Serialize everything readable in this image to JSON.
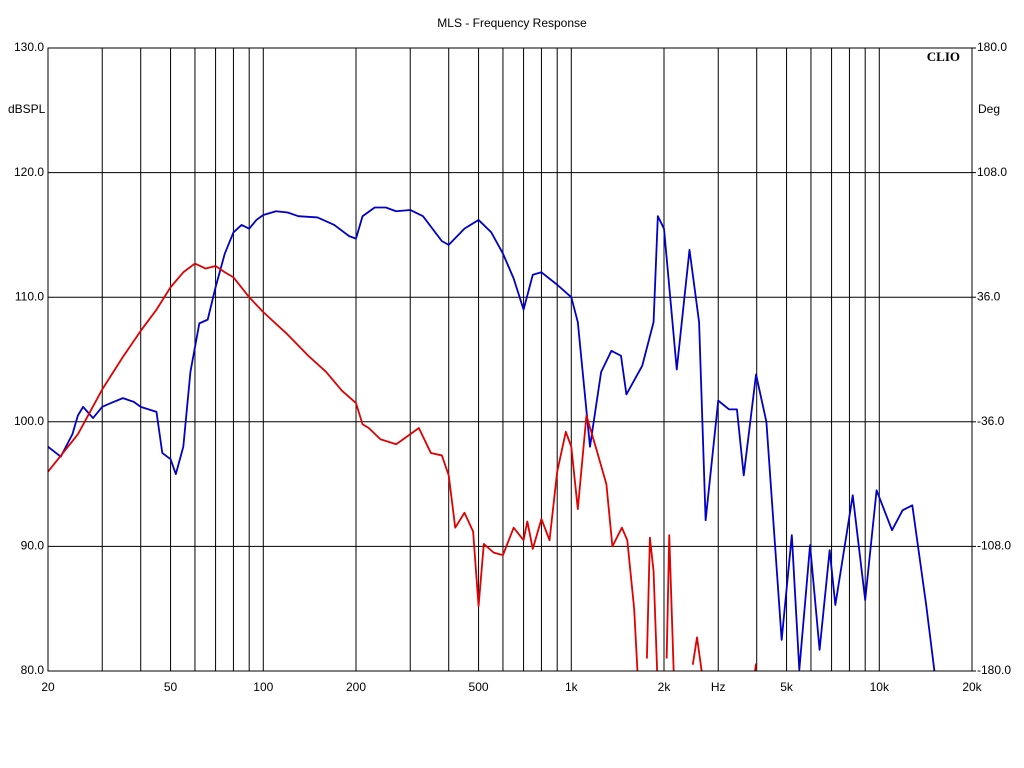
{
  "chart_data": {
    "type": "line",
    "title": "MLS - Frequency Response",
    "ylabel": "dBSPL",
    "y2label": "Deg",
    "brand": "CLIO",
    "xscale": "log",
    "xlim": [
      20,
      20000
    ],
    "ylim": [
      80,
      130
    ],
    "y2lim": [
      -180,
      180
    ],
    "grid": true,
    "xticks": [
      20,
      50,
      100,
      200,
      500,
      {
        "value": 1000,
        "label": "1k"
      },
      {
        "value": 2000,
        "label": "2k"
      },
      {
        "value": 3000,
        "label": "Hz"
      },
      {
        "value": 5000,
        "label": "5k"
      },
      {
        "value": 10000,
        "label": "10k"
      },
      {
        "value": 20000,
        "label": "20k"
      }
    ],
    "xgrid": [
      30,
      40,
      60,
      70,
      80,
      90,
      300,
      400,
      600,
      700,
      800,
      900,
      4000,
      6000,
      7000,
      8000,
      9000
    ],
    "yticks": [
      {
        "value": 80,
        "label": "80.0"
      },
      {
        "value": 90,
        "label": "90.0"
      },
      {
        "value": 100,
        "label": "100.0"
      },
      {
        "value": 110,
        "label": "110.0"
      },
      {
        "value": 120,
        "label": "120.0"
      },
      {
        "value": 130,
        "label": "130.0"
      }
    ],
    "y2ticks": [
      {
        "value": -180,
        "label": "-180.0"
      },
      {
        "value": -108,
        "label": "-108.0"
      },
      {
        "value": -36,
        "label": "-36.0"
      },
      {
        "value": 36,
        "label": "36.0"
      },
      {
        "value": 108,
        "label": "108.0"
      },
      {
        "value": 180,
        "label": "180.0"
      }
    ],
    "series": [
      {
        "color": "#0000c8",
        "x": [
          20,
          22,
          24,
          25,
          26,
          28,
          30,
          32,
          35,
          38,
          40,
          45,
          47,
          50,
          52,
          55,
          58,
          62,
          66,
          70,
          75,
          80,
          85,
          90,
          95,
          100,
          110,
          120,
          130,
          150,
          170,
          190,
          200,
          210,
          230,
          250,
          270,
          300,
          330,
          380,
          400,
          450,
          500,
          550,
          600,
          650,
          700,
          750,
          800,
          900,
          1000,
          1050,
          1150,
          1250,
          1350,
          1450,
          1510,
          1700,
          1850,
          1910,
          2000,
          2200,
          2420,
          2600,
          2730,
          3000,
          3250,
          3450,
          3630,
          3980,
          4300,
          4820,
          5200,
          5500,
          5960,
          6400,
          6900,
          7200,
          8200,
          9000,
          9800,
          11000,
          11900,
          12800,
          14200,
          15100
        ],
        "values": [
          98,
          97.2,
          99,
          100.5,
          101.2,
          100.3,
          101.2,
          101.5,
          101.9,
          101.6,
          101.2,
          100.8,
          97.5,
          97,
          95.8,
          98,
          104,
          107.9,
          108.2,
          110.8,
          113.5,
          115.2,
          115.8,
          115.5,
          116.2,
          116.6,
          116.9,
          116.8,
          116.5,
          116.4,
          115.8,
          114.9,
          114.7,
          116.5,
          117.2,
          117.2,
          116.9,
          117,
          116.5,
          114.5,
          114.2,
          115.5,
          116.2,
          115.2,
          113.5,
          111.5,
          109,
          111.8,
          112,
          111,
          110,
          108,
          98,
          104,
          105.7,
          105.3,
          102.2,
          104.5,
          108,
          116.5,
          115.5,
          104.2,
          113.8,
          108,
          92.1,
          101.7,
          101,
          101,
          95.7,
          103.8,
          100,
          82.5,
          90.9,
          80.1,
          90.1,
          81.7,
          89.7,
          85.3,
          94.1,
          85.7,
          94.5,
          91.3,
          92.9,
          93.3,
          85.3,
          80
        ]
      },
      {
        "color": "#e00000",
        "x": [
          20,
          25,
          30,
          35,
          40,
          45,
          50,
          55,
          60,
          65,
          70,
          75,
          80,
          90,
          100,
          120,
          140,
          160,
          180,
          200,
          210,
          220,
          240,
          270,
          300,
          320,
          350,
          380,
          400,
          420,
          450,
          480,
          500,
          520,
          560,
          600,
          650,
          700,
          720,
          750,
          800,
          850,
          900,
          960,
          1000,
          1050,
          1120,
          1200,
          1300,
          1360,
          1460,
          1520,
          1600,
          1640,
          1700,
          1760,
          1800,
          1850,
          1900,
          1950,
          2040,
          2080,
          2150,
          2200,
          2480,
          2560,
          2650,
          2700,
          3950,
          3980
        ],
        "values": [
          96,
          99,
          102.6,
          105.2,
          107.3,
          109,
          110.8,
          112,
          112.7,
          112.3,
          112.5,
          112,
          111.6,
          110,
          108.8,
          107,
          105.3,
          104,
          102.5,
          101.5,
          99.8,
          99.5,
          98.6,
          98.2,
          99,
          99.5,
          97.5,
          97.3,
          95.7,
          91.5,
          92.7,
          91.2,
          85.2,
          90.2,
          89.5,
          89.3,
          91.5,
          90.5,
          92,
          89.8,
          92.2,
          90.5,
          96,
          99.2,
          98,
          93,
          100.5,
          98,
          95,
          90,
          91.5,
          90.5,
          85,
          80,
          null,
          81,
          90.7,
          88,
          80,
          null,
          81,
          90.9,
          80,
          null,
          80.5,
          82.7,
          80,
          null,
          80,
          80.6
        ]
      }
    ]
  }
}
